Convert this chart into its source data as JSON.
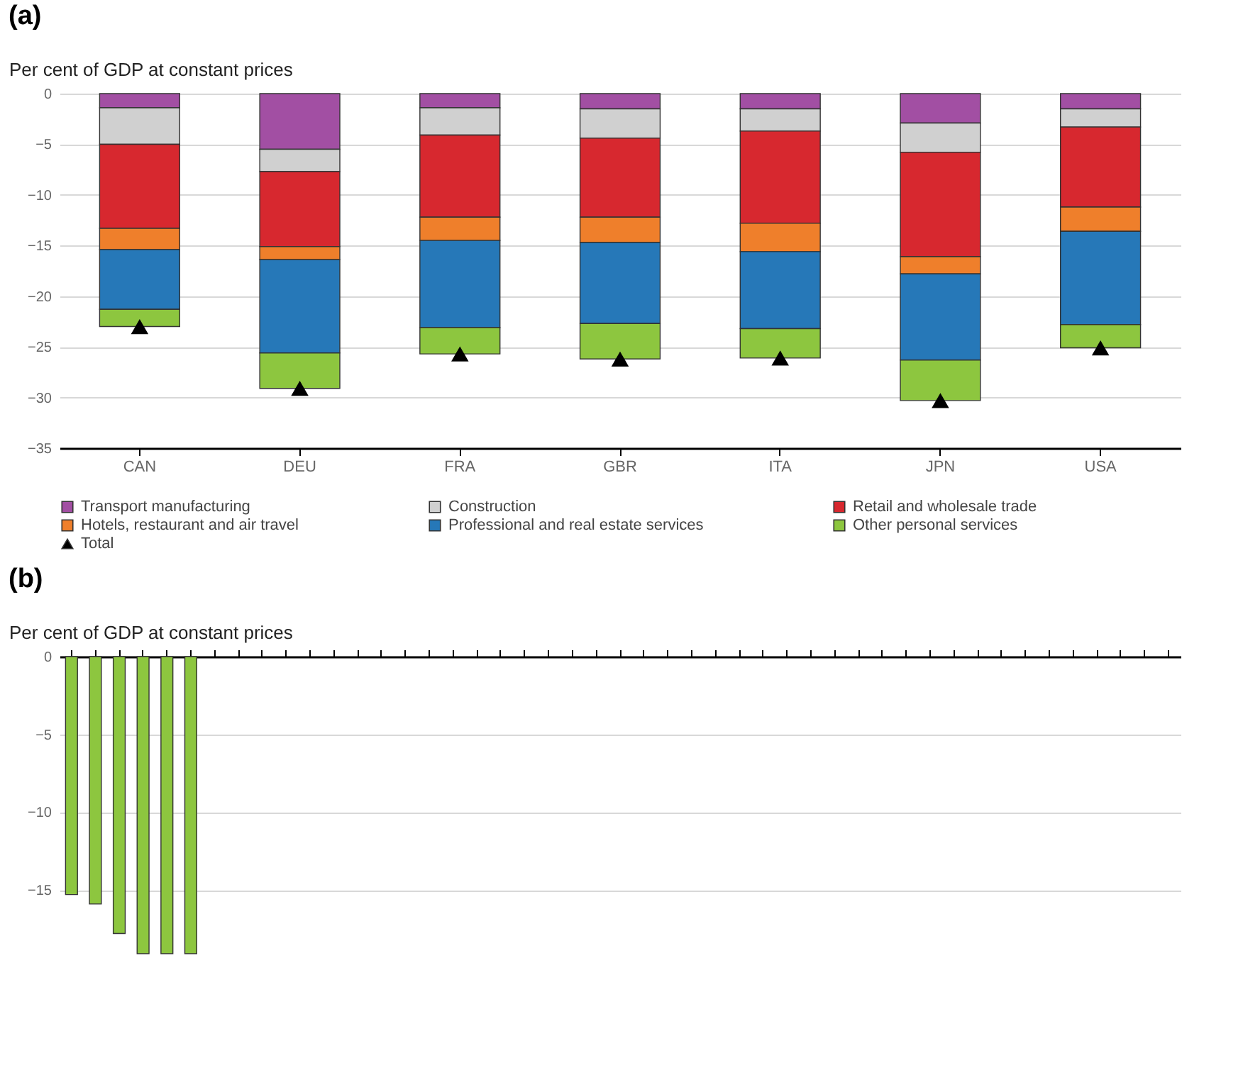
{
  "chart_data": [
    {
      "type": "bar",
      "title": "(a)",
      "ylabel": "Per cent of GDP at constant prices",
      "stacked": true,
      "categories": [
        "CAN",
        "DEU",
        "FRA",
        "GBR",
        "ITA",
        "JPN",
        "USA"
      ],
      "series": [
        {
          "name": "Transport manufacturing",
          "color": "#a24fa3",
          "values": [
            -1.4,
            -5.5,
            -1.4,
            -1.5,
            -1.5,
            -2.9,
            -1.5
          ]
        },
        {
          "name": "Construction",
          "color": "#d0d0d0",
          "values": [
            -3.6,
            -2.2,
            -2.7,
            -2.9,
            -2.2,
            -2.9,
            -1.8
          ]
        },
        {
          "name": "Retail and wholesale trade",
          "color": "#d7282f",
          "values": [
            -8.3,
            -7.4,
            -8.1,
            -7.8,
            -9.1,
            -10.3,
            -7.9
          ]
        },
        {
          "name": "Hotels, restaurant and air travel",
          "color": "#ef7f2b",
          "values": [
            -2.1,
            -1.3,
            -2.3,
            -2.5,
            -2.8,
            -1.7,
            -2.4
          ]
        },
        {
          "name": "Professional and real estate services",
          "color": "#2678b8",
          "values": [
            -5.9,
            -9.2,
            -8.6,
            -8.0,
            -7.6,
            -8.5,
            -9.2
          ]
        },
        {
          "name": "Other personal services",
          "color": "#8dc63f",
          "values": [
            -1.7,
            -3.5,
            -2.6,
            -3.5,
            -2.9,
            -4.0,
            -2.3
          ]
        },
        {
          "name": "Total",
          "type": "scatter",
          "marker": "triangle",
          "color": "#000000",
          "values": [
            -23.0,
            -29.1,
            -25.7,
            -26.2,
            -26.1,
            -30.3,
            -25.1
          ]
        }
      ],
      "ylim": [
        -35,
        0
      ],
      "yticks": [
        -35,
        -30,
        -25,
        -20,
        -15,
        -10,
        -5,
        0
      ],
      "grid": "y",
      "legend": "bottom"
    },
    {
      "type": "bar",
      "title": "(b)",
      "ylabel": "Per cent of GDP at constant prices",
      "categories": [
        null,
        null,
        null,
        null,
        null,
        null,
        null,
        null,
        null,
        null,
        null,
        null,
        null,
        null,
        null,
        null,
        null,
        null,
        null,
        null,
        null,
        null,
        null,
        null,
        null,
        null,
        null,
        null,
        null,
        null,
        null,
        null,
        null,
        null,
        null,
        null,
        null,
        null,
        null,
        null,
        null,
        null,
        null,
        null,
        null,
        null,
        null
      ],
      "series": [
        {
          "color": "#8dc63f",
          "values": [
            -15.3,
            -15.9,
            -17.8,
            -19.1,
            -19.1,
            -19.1,
            null,
            null,
            null,
            null,
            null,
            null,
            null,
            null,
            null,
            null,
            null,
            null,
            null,
            null,
            null,
            null,
            null,
            null,
            null,
            null,
            null,
            null,
            null,
            null,
            null,
            null,
            null,
            null,
            null,
            null,
            null,
            null,
            null,
            null,
            null,
            null,
            null,
            null,
            null,
            null,
            null
          ]
        }
      ],
      "ylim": [
        -19.6,
        0
      ],
      "yticks": [
        -15,
        -10,
        -5,
        0
      ],
      "grid": "y",
      "tick_labels": "y"
    }
  ]
}
